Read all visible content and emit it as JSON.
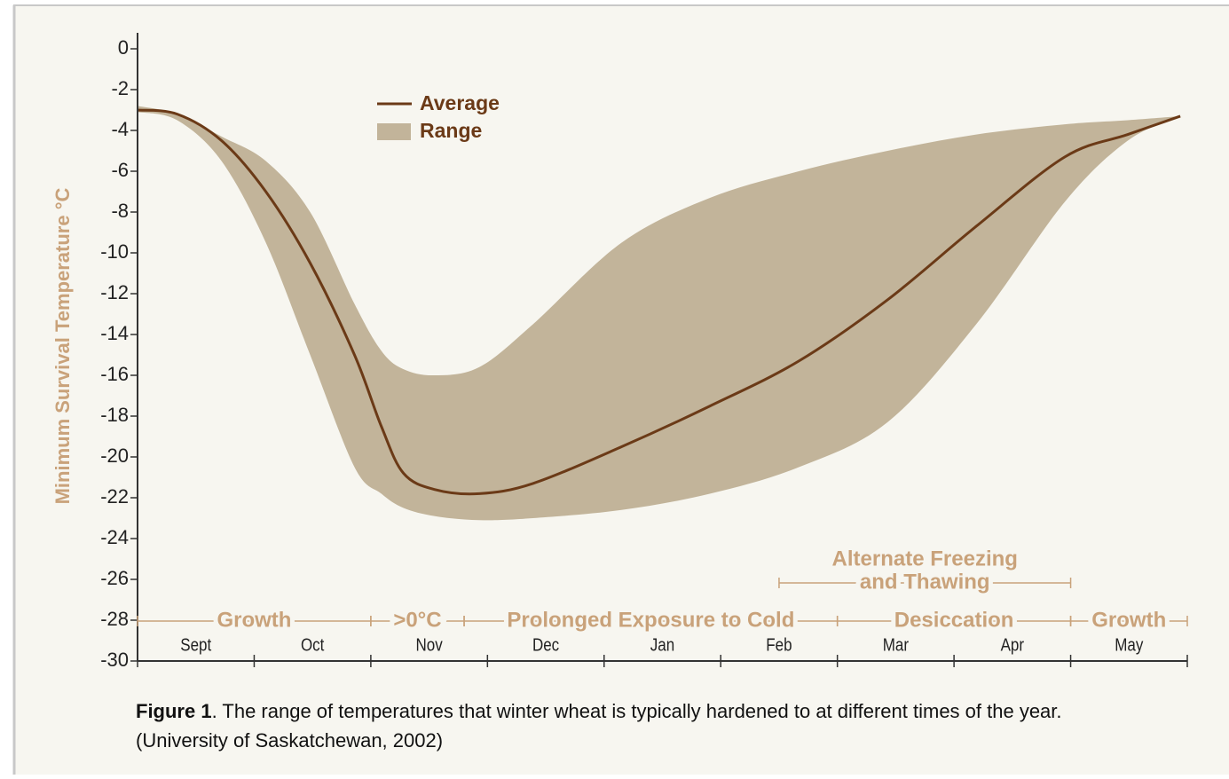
{
  "chart_data": {
    "type": "band-line",
    "y_label": "Minimum Survival Temperature °C",
    "categories": [
      "Sept",
      "Oct",
      "Nov",
      "Dec",
      "Jan",
      "Feb",
      "Mar",
      "Apr",
      "May"
    ],
    "x": [
      0,
      0.34,
      0.72,
      1.1,
      1.48,
      1.86,
      2.09,
      2.28,
      2.55,
      2.93,
      3.39,
      4.15,
      4.91,
      5.67,
      6.43,
      7.19,
      7.95,
      8.49,
      8.94
    ],
    "xlim": [
      0,
      9
    ],
    "xticks": [
      0,
      1,
      2,
      3,
      4,
      5,
      6,
      7,
      8,
      9
    ],
    "ylim": [
      -30,
      0
    ],
    "yticks": [
      0,
      -2,
      -4,
      -6,
      -8,
      -10,
      -12,
      -14,
      -16,
      -18,
      -20,
      -22,
      -24,
      -26,
      -28,
      -30
    ],
    "series": [
      {
        "name": "Average",
        "color": "#6b3a17",
        "values": [
          -3,
          -3.2,
          -4.5,
          -7,
          -10.5,
          -15,
          -18.5,
          -20.8,
          -21.6,
          -21.8,
          -21.3,
          -19.5,
          -17.5,
          -15.3,
          -12.3,
          -8.7,
          -5.3,
          -4.2,
          -3.3
        ]
      },
      {
        "name": "Range",
        "color": "#c2b49a",
        "high": [
          -2.8,
          -3.2,
          -4.3,
          -5.5,
          -8,
          -12.5,
          -14.8,
          -15.7,
          -16,
          -15.6,
          -13.5,
          -9.5,
          -7.3,
          -6,
          -5,
          -4.2,
          -3.7,
          -3.5,
          -3.3
        ],
        "low": [
          -3.1,
          -3.5,
          -5.5,
          -9.5,
          -15,
          -20.5,
          -21.8,
          -22.5,
          -22.9,
          -23.1,
          -23,
          -22.6,
          -21.8,
          -20.5,
          -18.3,
          -13.5,
          -7.5,
          -4.5,
          -3.3
        ]
      }
    ],
    "periods": [
      {
        "label": "Growth",
        "start": 0,
        "end": 2
      },
      {
        "label": ">0°C",
        "start": 2,
        "end": 2.8
      },
      {
        "label": "Prolonged Exposure to Cold",
        "start": 2.8,
        "end": 6
      },
      {
        "label": "Desiccation",
        "start": 6,
        "end": 8
      },
      {
        "label": "Growth",
        "start": 8,
        "end": 9
      }
    ],
    "overlap_periods": [
      {
        "label": [
          "Alternate Freezing",
          "and Thawing"
        ],
        "start": 5.5,
        "end": 8
      }
    ]
  },
  "caption": {
    "label": "Figure 1",
    "text": ". The range of temperatures that winter wheat is typically hardened to at different times of the year.",
    "source": "(University of Saskatchewan, 2002)"
  }
}
